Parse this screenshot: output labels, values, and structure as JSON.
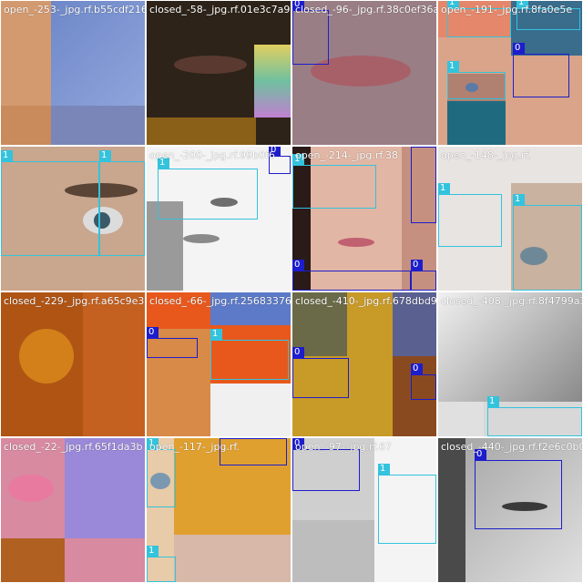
{
  "tiles": [
    {
      "caption": "open_-253-_jpg.rf.b55cdf2169",
      "bg": "#d49a6f",
      "boxes": []
    },
    {
      "caption": "closed_-58-_jpg.rf.01e3c7a94",
      "bg": "#2d2318",
      "boxes": []
    },
    {
      "caption": "closed_-96-_jpg.rf.38c0ef36a",
      "bg": "#9a7e86",
      "boxes": [
        {
          "cls": "0",
          "label": "0"
        }
      ]
    },
    {
      "caption": "open_-191-_jpg.rf.8fa0e5e",
      "bg": "#d9a489",
      "boxes": [
        {
          "cls": "1",
          "label": "1"
        },
        {
          "cls": "1",
          "label": "1"
        },
        {
          "cls": "1",
          "label": "1"
        },
        {
          "cls": "0",
          "label": "0"
        }
      ]
    },
    {
      "caption": "",
      "bg": "#c9a68e",
      "boxes": [
        {
          "cls": "1",
          "label": "1"
        },
        {
          "cls": "1",
          "label": "1"
        }
      ]
    },
    {
      "caption": "open_-200-_jpg.rf.99b0f6",
      "bg": "#f4f4f4",
      "boxes": [
        {
          "cls": "1",
          "label": "1"
        },
        {
          "cls": "0",
          "label": "0"
        }
      ]
    },
    {
      "caption": "open_-214-_jpg.rf.38",
      "bg": "#e2b6a4",
      "boxes": [
        {
          "cls": "1",
          "label": "1"
        },
        {
          "cls": "0",
          "label": "0"
        },
        {
          "cls": "0",
          "label": "0"
        },
        {
          "cls": "0",
          "label": "0"
        }
      ]
    },
    {
      "caption": "open_-148-_jpg.rf.",
      "bg": "#e8e4e2",
      "boxes": [
        {
          "cls": "1",
          "label": "1"
        },
        {
          "cls": "1",
          "label": "1"
        }
      ]
    },
    {
      "caption": "closed_-229-_jpg.rf.a65c9e3",
      "bg": "#b05414",
      "boxes": []
    },
    {
      "caption": "closed_-66-_jpg.rf.25683376",
      "bg": "#e8581c",
      "boxes": [
        {
          "cls": "0",
          "label": "0"
        },
        {
          "cls": "1",
          "label": "1"
        }
      ]
    },
    {
      "caption": "closed_-410-_jpg.rf.678dbd9",
      "bg": "#c89a28",
      "boxes": [
        {
          "cls": "0",
          "label": "0"
        },
        {
          "cls": "0",
          "label": "0"
        }
      ]
    },
    {
      "caption": "closed_-408-_jpg.rf.8f4799a3",
      "bg": "#d8d8d8",
      "boxes": [
        {
          "cls": "1",
          "label": "1"
        }
      ]
    },
    {
      "caption": "closed_-22-_jpg.rf.65f1da3b",
      "bg": "#d88aa0",
      "boxes": []
    },
    {
      "caption": "open_-117-_jpg.rf.",
      "bg": "#e8cba8",
      "boxes": [
        {
          "cls": "1",
          "label": "1"
        },
        {
          "cls": "0",
          "label": "0"
        },
        {
          "cls": "1",
          "label": "1"
        }
      ]
    },
    {
      "caption": "open_-97-_jpg.rf.67",
      "bg": "#cfcfcf",
      "boxes": [
        {
          "cls": "0",
          "label": "0"
        },
        {
          "cls": "1",
          "label": "1"
        }
      ]
    },
    {
      "caption": "closed_-440-_jpg.rf.f2e6c0b0",
      "bg": "#8a8a8a",
      "boxes": [
        {
          "cls": "0",
          "label": "0"
        }
      ]
    }
  ]
}
